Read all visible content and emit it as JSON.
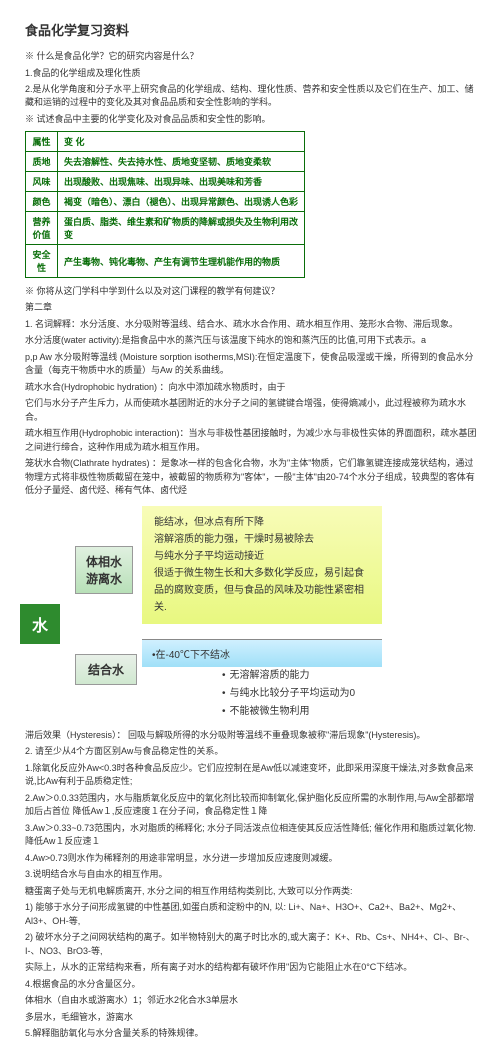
{
  "title": "食品化学复习资料",
  "intro": {
    "q1": "※ 什么是食品化学？它的研究内容是什么？",
    "a1_1": "1.食品的化学组成及理化性质",
    "a1_2": "2.是从化学角度和分子水平上研究食品的化学组成、结构、理化性质、营养和安全性质以及它们在生产、加工、储藏和运销的过程中的变化及其对食品品质和安全性影响的学科。",
    "q2": "※ 试述食品中主要的化学变化及对食品品质和安全性的影响。"
  },
  "table": {
    "r1c1": "属性",
    "r1c2": "变    化",
    "r2c1": "质地",
    "r2c2": "失去溶解性、失去持水性、质地变坚韧、质地变柔软",
    "r3c1": "风味",
    "r3c2": "出现酸败、出现焦味、出现异味、出现美味和芳香",
    "r4c1": "颜色",
    "r4c2": "褐变（暗色）、漂白（褪色）、出现异常颜色、出现诱人色彩",
    "r5c1": "营养价值",
    "r5c2": "蛋白质、脂类、维生素和矿物质的降解或损失及生物利用改变",
    "r6c1": "安全性",
    "r6c2": "产生毒物、钝化毒物、产生有调节生理机能作用的物质"
  },
  "q3": "※ 你将从这门学科中学到什么以及对这门课程的教学有何建议？",
  "chapter2": "第二章",
  "p1": "1. 名词解释：水分活度、水分吸附等温线、结合水、疏水水合作用、疏水相互作用、笼形水合物、滞后现象。",
  "p2": "水分活度(water activity):是指食品中水的蒸汽压与该温度下纯水的饱和蒸汽压的比值,可用下式表示。a",
  "p3": "p,p Aw 水分吸附等温线 (Moisture sorption isotherms,MSI):在恒定温度下，使食品吸湿或干燥，所得到的食品水分含量（每克干物质中水的质量）与Aw 的关系曲线。",
  "p4": "疏水水合(Hydrophobic hydration) ：向水中添加疏水物质时，由于",
  "p5": "它们与水分子产生斥力，从而使疏水基团附近的水分子之间的氢键键合增强，使得熵减小，此过程被称为疏水水合。",
  "p6": "疏水相互作用(Hydrophobic interaction)：当水与非极性基团接触时，为减少水与非极性实体的界面面积，疏水基团之间进行缔合，这种作用成为疏水相互作用。",
  "p7": "笼状水合物(Clathrate hydrates) ：是象冰一样的包含化合物，水为\"主体\"物质，它们靠氢键连接成笼状结构，通过物理方式将非极性物质截留在笼中，被截留的物质称为\"客体\"，一般\"主体\"由20-74个水分子组成，较典型的客体有低分子量烃、卤代烃、稀有气体、卤代烃",
  "box1": {
    "l1": "能结冰，但冰点有所下降",
    "l2": "溶解溶质的能力强，干燥时易被除去",
    "l3": "与纯水分子平均运动接近",
    "l4": "很适于微生物生长和大多数化学反应，易引起食品的腐败变质，但与食品的风味及功能性紧密相关."
  },
  "phase_label": "体相水\n游离水",
  "water_label": "水",
  "bind_label": "结合水",
  "box2": "•在-40℃下不结冰",
  "bullets": {
    "b1": "无溶解溶质的能力",
    "b2": "与纯水比较分子平均运动为0",
    "b3": "不能被微生物利用"
  },
  "p8": "滞后效果（Hysteresis）：     回吸与解吸所得的水分吸附等温线不重叠现象被称\"滞后现象\"(Hysteresis)。",
  "p9": "2. 请至少从4个方面区别Aw与食品稳定性的关系。",
  "p10": "1.除氧化反应外Aw<0.3时各种食品反应少。它们应控制在是Aw低以减速变坏，此即采用深度干燥法,对多数食品来说,比Aw有利于品质稳定性;",
  "p11": "2.Aw＞0.0.33范围内，水与脂质氧化反应中的氧化剂比较而抑制氧化,保护脂化反应所需的水制作用,与Aw全部都增加后占首位      降低Aw１,反应速度１在分子间，食品稳定性１降",
  "p12": "3.Aw＞0.33~0.73范围内，水对脂质的稀释化; 水分子同活泼点位相连使其反应活性降低;   催化作用和脂质过氧化物.  降低Aw１反应速１",
  "p13": "4.Aw>0.73则水作为稀释剂的用途非常明显，水分进一步增加反应速度则减缓。",
  "p14": "3.说明结合水与自由水的相互作用。",
  "p15": "糖蛋离子处与无机电解质离开, 水分之间的相互作用结构类别比,  大致可以分作两类:",
  "p16": "1) 能够于水分子间形成氢键的中性基团,如蛋白质和淀粉中的N, 以:  Li+、Na+、H3O+、Ca2+、Ba2+、Mg2+、Al3+、OH-等,",
  "p17": "2) 破坏水分子之间网状结构的离子。如半物特别大的离子时比水的,或大离子：K+、Rb、Cs+、NH4+、Cl-、Br-、I-、NO3、BrO3-等,",
  "p18": "实际上，从水的正常结构来看，所有离子对水的结构都有破坏作用\"因为它能阻止水在0°C下结冰。",
  "p19": "4.根据食品的水分含量区分。",
  "p20": "体相水（自由水或游离水）1；邻近水2化合水3单层水",
  "p21": "多层水，毛细管水，游离水",
  "p22": "5.解释脂肪氧化与水分含量关系的特殊规律。"
}
